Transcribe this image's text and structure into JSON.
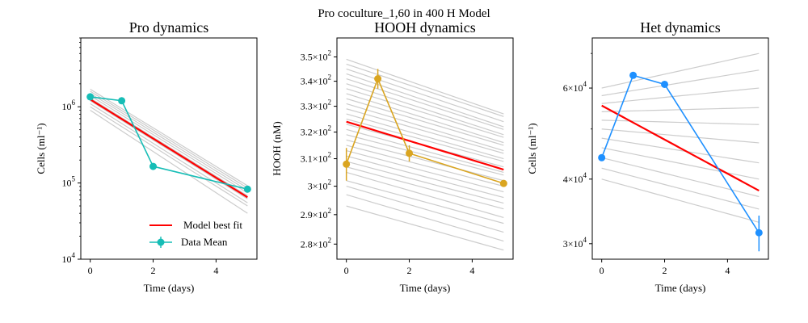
{
  "figure": {
    "suptitle": "Pro coculture_1,60 in 400 H Model"
  },
  "chart_data": [
    {
      "type": "line",
      "title": "Pro dynamics",
      "xlabel": "Time (days)",
      "ylabel": "Cells (ml⁻¹)",
      "yscale": "log",
      "xlim": [
        -0.3,
        5.3
      ],
      "ylim": [
        10000,
        8000000
      ],
      "xticks": [
        0,
        2,
        4
      ],
      "yticks": [
        {
          "value": 10000,
          "base": "10",
          "exp": "4"
        },
        {
          "value": 100000,
          "base": "10",
          "exp": "5"
        },
        {
          "value": 1000000,
          "base": "10",
          "exp": "6"
        }
      ],
      "legend": {
        "placement": "lower-right",
        "items": [
          "Model best fit",
          "Data Mean"
        ]
      },
      "colors": {
        "best_fit": "#ff0000",
        "data": "#16bdb6",
        "ensemble": "#cccccc"
      },
      "best_fit": {
        "name": "Model best fit",
        "x": [
          0,
          5
        ],
        "y": [
          1250000,
          65000
        ],
        "shape": "exp"
      },
      "data_mean": {
        "name": "Data Mean",
        "x": [
          0,
          1,
          2,
          5
        ],
        "y": [
          1350000,
          1200000,
          165000,
          83000
        ],
        "err": [
          0,
          0,
          0,
          0
        ]
      },
      "ensemble": {
        "x": [
          0,
          5
        ],
        "start": [
          900000,
          1000000,
          1100000,
          1200000,
          1300000,
          1400000,
          1500000,
          1600000,
          1700000
        ],
        "end": [
          40000,
          50000,
          55000,
          62000,
          68000,
          74000,
          80000,
          86000,
          92000
        ]
      }
    },
    {
      "type": "line",
      "title": "HOOH dynamics",
      "xlabel": "Time (days)",
      "ylabel": "HOOH (nM)",
      "yscale": "log",
      "xlim": [
        -0.3,
        5.3
      ],
      "ylim": [
        275,
        358
      ],
      "xticks": [
        0,
        2,
        4
      ],
      "yticks": [
        {
          "value": 280,
          "mant": "2.8"
        },
        {
          "value": 290,
          "mant": "2.9"
        },
        {
          "value": 300,
          "mant": "3"
        },
        {
          "value": 310,
          "mant": "3.1"
        },
        {
          "value": 320,
          "mant": "3.2"
        },
        {
          "value": 330,
          "mant": "3.3"
        },
        {
          "value": 340,
          "mant": "3.4"
        },
        {
          "value": 350,
          "mant": "3.5"
        }
      ],
      "colors": {
        "best_fit": "#ff0000",
        "data": "#daa520",
        "ensemble": "#cccccc"
      },
      "best_fit": {
        "name": "Model best fit",
        "x": [
          0,
          5
        ],
        "y": [
          324,
          306
        ],
        "shape": "exp"
      },
      "data_mean": {
        "name": "Data Mean",
        "x": [
          0,
          1,
          2,
          5
        ],
        "y": [
          308,
          341,
          312,
          301
        ],
        "err": [
          6,
          4,
          3,
          1
        ]
      },
      "ensemble": {
        "x": [
          0,
          5
        ],
        "start": [
          293,
          297,
          300,
          302,
          305,
          307,
          309,
          311,
          313,
          315,
          317,
          319,
          321,
          323,
          325,
          327,
          329,
          331,
          333,
          335,
          337,
          339,
          341,
          343,
          345,
          347,
          349
        ],
        "end": [
          278,
          281,
          284,
          287,
          289,
          292,
          294,
          296,
          298,
          300,
          302,
          304,
          305,
          307,
          309,
          310,
          312,
          313,
          315,
          316,
          318,
          319,
          321,
          322,
          324,
          326,
          327
        ]
      }
    },
    {
      "type": "line",
      "title": "Het dynamics",
      "xlabel": "Time (days)",
      "ylabel": "Cells (ml⁻¹)",
      "yscale": "log",
      "xlim": [
        -0.3,
        5.3
      ],
      "ylim": [
        28000,
        75000
      ],
      "xticks": [
        0,
        2,
        4
      ],
      "yticks": [
        {
          "value": 30000,
          "mant": "3"
        },
        {
          "value": 40000,
          "mant": "4"
        },
        {
          "value": 60000,
          "mant": "6"
        }
      ],
      "colors": {
        "best_fit": "#ff0000",
        "data": "#1e90ff",
        "ensemble": "#cccccc"
      },
      "best_fit": {
        "name": "Model best fit",
        "x": [
          0,
          5
        ],
        "y": [
          55500,
          38000
        ],
        "shape": "exp"
      },
      "data_mean": {
        "name": "Data Mean",
        "x": [
          0,
          1,
          2,
          5
        ],
        "y": [
          44000,
          63500,
          61000,
          31500
        ],
        "err": [
          0,
          0,
          0,
          2500
        ]
      },
      "ensemble": {
        "x": [
          0,
          5
        ],
        "start": [
          40000,
          42000,
          44000,
          46000,
          48000,
          50000,
          52000,
          54000,
          56000,
          58000,
          60000
        ],
        "end": [
          33000,
          35000,
          37000,
          40000,
          43000,
          47000,
          51000,
          55000,
          60000,
          65000,
          70000
        ]
      }
    }
  ]
}
